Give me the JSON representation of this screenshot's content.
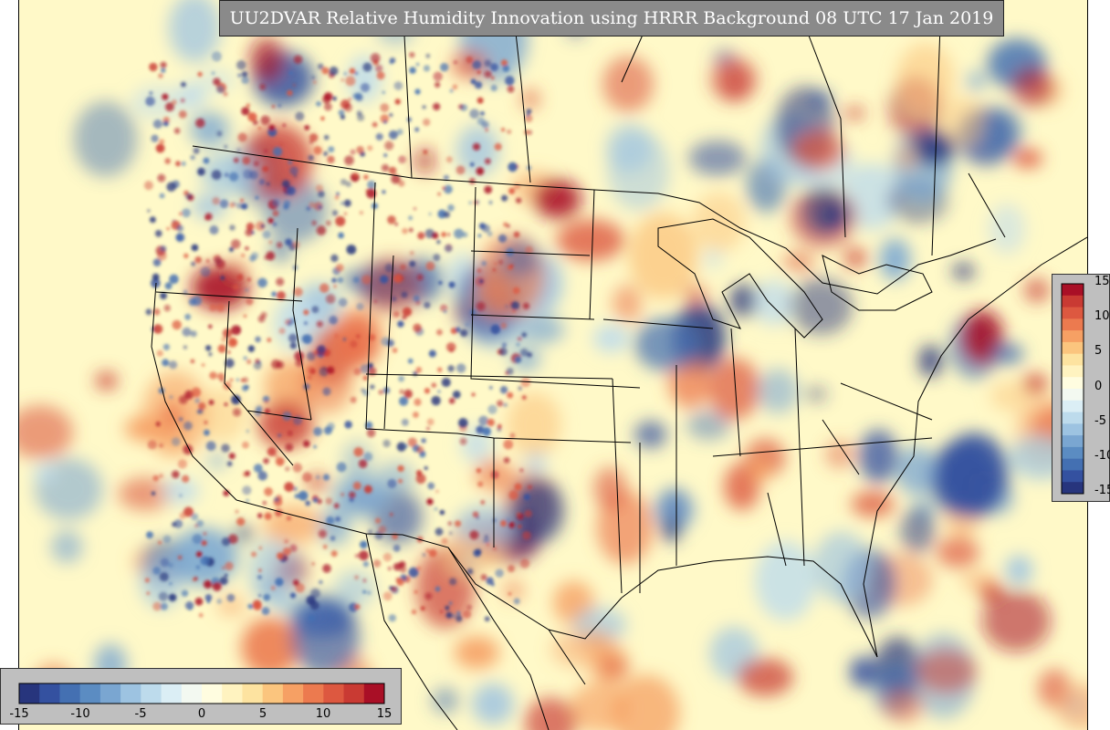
{
  "title": "UU2DVAR Relative Humidity Innovation using HRRR Background 08 UTC 17 Jan 2019",
  "colorbar": {
    "min": -15,
    "max": 15,
    "ticks_right": [
      "15",
      "10",
      "5",
      "0",
      "-5",
      "-10",
      "-15"
    ],
    "ticks_bottom": [
      "-15",
      "-10",
      "-5",
      "0",
      "5",
      "10",
      "15"
    ],
    "colors": [
      "#27357d",
      "#3451a0",
      "#4470b2",
      "#5b8cc2",
      "#7aa6d1",
      "#9dc3e1",
      "#bddbec",
      "#dbeef5",
      "#f3f9f1",
      "#fffde0",
      "#fff3c0",
      "#fde3a0",
      "#fbc57e",
      "#f6a064",
      "#ec7a4f",
      "#dd5840",
      "#c93a33",
      "#a90f26"
    ],
    "color_missing_background": "#fff9c8",
    "border_color": "#000000"
  }
}
